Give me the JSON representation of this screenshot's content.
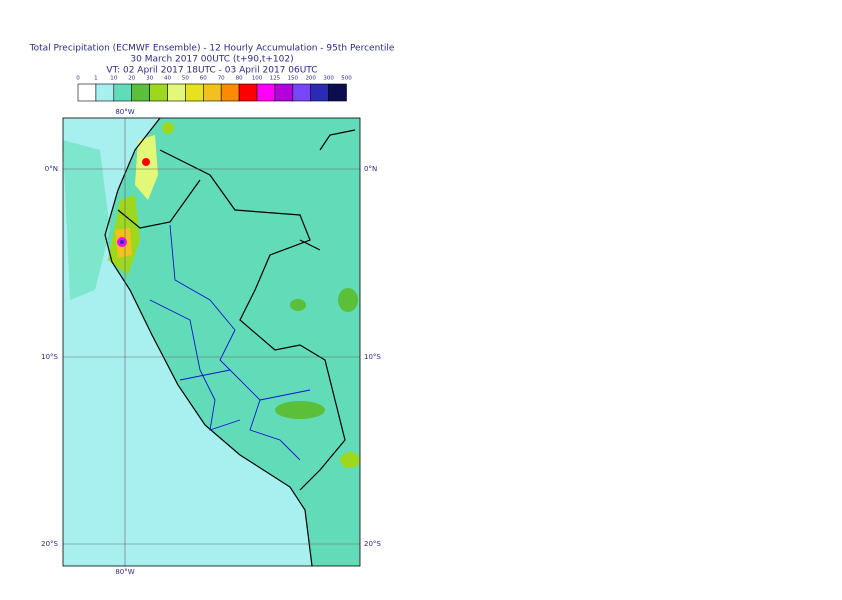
{
  "header": {
    "title": [
      "Total Precipitation (ECMWF Ensemble) - 12 Hourly Accumulation - 95th Percentile",
      "30 March 2017 00UTC (t+90,t+102)",
      "VT: 02 April 2017 18UTC - 03 April 2017 06UTC"
    ]
  },
  "legend": {
    "labels": [
      "0",
      "1",
      "10",
      "20",
      "30",
      "40",
      "50",
      "60",
      "70",
      "80",
      "100",
      "125",
      "150",
      "200",
      "300",
      "500"
    ],
    "colors": [
      "#ffffff",
      "#a8f0f0",
      "#5fdcb8",
      "#5cbf3a",
      "#9ed81e",
      "#e4f878",
      "#e6e21e",
      "#f2c21c",
      "#ff8a00",
      "#ff0000",
      "#ff00ff",
      "#b400dc",
      "#7846ff",
      "#2a2ab4",
      "#0c0c50"
    ]
  },
  "map": {
    "lon_labels": [
      "80°W",
      "80°W"
    ],
    "lat_labels": [
      "0°N",
      "0°N",
      "10°S",
      "10°S",
      "20°S",
      "20°S"
    ]
  }
}
